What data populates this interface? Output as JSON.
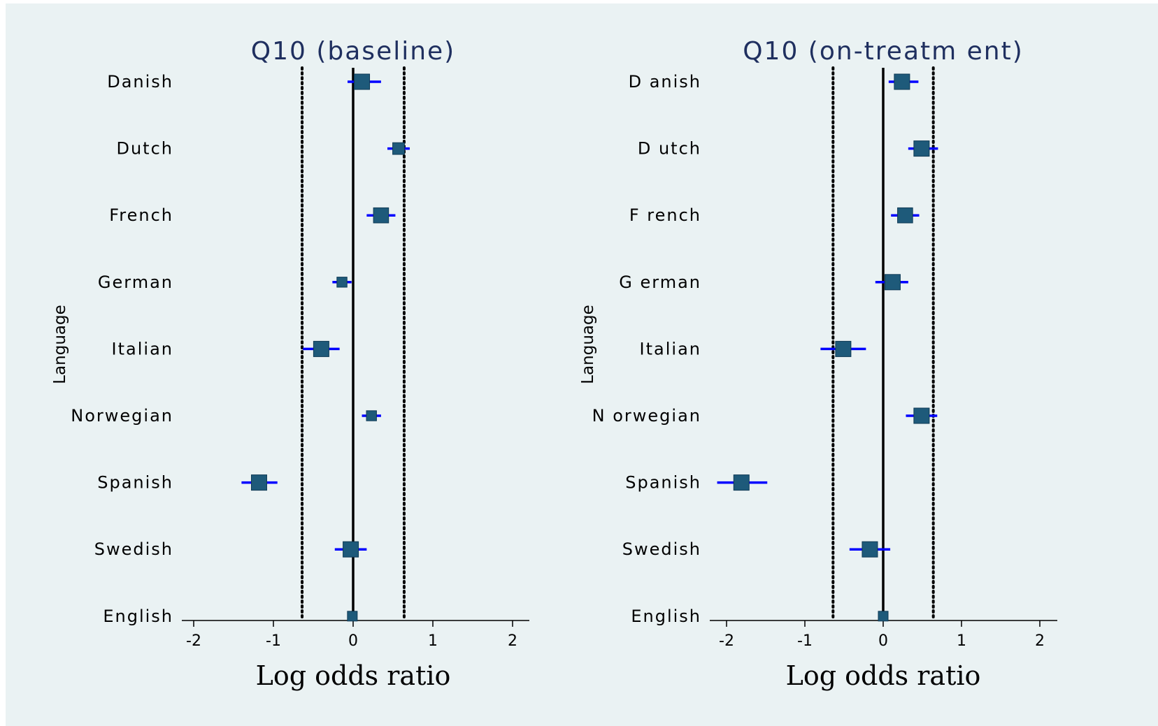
{
  "chart_data": [
    {
      "type": "forest",
      "title": "Q10 (baseline)",
      "xlabel": "Log odds ratio",
      "ylabel": "Language",
      "xlim": [
        -2.2,
        2.2
      ],
      "xticks": [
        "-2",
        "-1",
        "0",
        "1",
        "2"
      ],
      "reference_line": 0,
      "threshold_lines": [
        -0.64,
        0.64
      ],
      "categories": [
        "Danish",
        "Dutch",
        "French",
        "German",
        "Italian",
        "Norwegian",
        "Spanish",
        "Swedish",
        "English"
      ],
      "estimates": [
        0.11,
        0.57,
        0.35,
        -0.14,
        -0.4,
        0.23,
        -1.18,
        -0.03,
        -0.01
      ],
      "ci_lower": [
        -0.07,
        0.43,
        0.17,
        -0.26,
        -0.63,
        0.11,
        -1.4,
        -0.23,
        -0.03
      ],
      "ci_upper": [
        0.35,
        0.71,
        0.53,
        -0.02,
        -0.17,
        0.35,
        -0.95,
        0.17,
        0.01
      ],
      "grid": false,
      "colors": {
        "marker": "#1e5a7a",
        "ci": "#0000ff",
        "lines": "#000000"
      }
    },
    {
      "type": "forest",
      "title": "Q10 (on-treatm ent)",
      "xlabel": "Log odds ratio",
      "ylabel": "Language",
      "xlim": [
        -2.2,
        2.2
      ],
      "xticks": [
        "-2",
        "-1",
        "0",
        "1",
        "2"
      ],
      "reference_line": 0,
      "threshold_lines": [
        -0.64,
        0.64
      ],
      "categories": [
        "D anish",
        "D utch",
        "F rench",
        "G erman",
        "Italian",
        "N orwegian",
        "Spanish",
        "Swedish",
        "English"
      ],
      "estimates": [
        0.24,
        0.49,
        0.28,
        0.12,
        -0.51,
        0.49,
        -1.81,
        -0.17,
        0.0
      ],
      "ci_lower": [
        0.07,
        0.32,
        0.1,
        -0.1,
        -0.8,
        0.29,
        -2.12,
        -0.43,
        -0.02
      ],
      "ci_upper": [
        0.45,
        0.7,
        0.46,
        0.32,
        -0.22,
        0.69,
        -1.48,
        0.09,
        0.02
      ],
      "grid": false,
      "colors": {
        "marker": "#1e5a7a",
        "ci": "#0000ff",
        "lines": "#000000"
      }
    }
  ]
}
